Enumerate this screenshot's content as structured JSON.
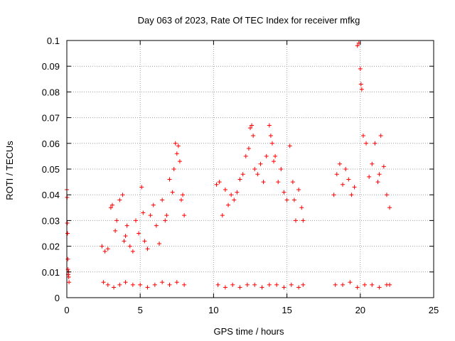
{
  "chart_data": {
    "type": "scatter",
    "title": "Day 063 of 2023, Rate Of TEC Index for receiver mfkg",
    "xlabel": "GPS time / hours",
    "ylabel": "ROTI / TECUs",
    "xlim": [
      0,
      25
    ],
    "ylim": [
      0,
      0.1
    ],
    "x_ticks": [
      0,
      5,
      10,
      15,
      20,
      25
    ],
    "y_ticks": [
      0,
      0.01,
      0.02,
      0.03,
      0.04,
      0.05,
      0.06,
      0.07,
      0.08,
      0.09,
      0.1
    ],
    "x_tick_labels": [
      "0",
      "5",
      "10",
      "15",
      "20",
      "25"
    ],
    "y_tick_labels": [
      "0",
      "0.01",
      "0.02",
      "0.03",
      "0.04",
      "0.05",
      "0.06",
      "0.07",
      "0.08",
      "0.09",
      "0.1"
    ],
    "grid": true,
    "marker": "+",
    "color": "#ff0000",
    "series": [
      {
        "x": [
          0.0,
          0.02,
          0.03,
          0.05,
          0.07,
          0.08,
          0.1,
          0.12,
          0.13,
          0.15,
          2.4,
          2.6,
          2.8,
          3.0,
          3.1,
          3.3,
          3.4,
          3.6,
          3.8,
          3.9,
          4.0,
          4.1,
          4.3,
          4.5,
          4.7,
          4.9,
          5.1,
          5.2,
          5.3,
          5.5,
          5.7,
          5.9,
          6.1,
          6.3,
          6.5,
          6.7,
          6.8,
          7.0,
          7.2,
          7.3,
          7.4,
          7.5,
          7.6,
          7.7,
          7.8,
          7.9,
          8.0,
          10.2,
          10.4,
          10.6,
          10.8,
          11.0,
          11.2,
          11.4,
          11.6,
          11.8,
          12.0,
          12.2,
          12.4,
          12.5,
          12.6,
          12.7,
          12.8,
          13.0,
          13.2,
          13.4,
          13.6,
          13.8,
          13.9,
          14.0,
          14.1,
          14.2,
          14.4,
          14.6,
          14.8,
          15.0,
          15.2,
          15.4,
          15.5,
          15.6,
          15.8,
          16.0,
          16.1,
          18.2,
          18.4,
          18.6,
          18.8,
          19.0,
          19.2,
          19.4,
          19.6,
          19.8,
          19.9,
          20.0,
          20.05,
          20.1,
          20.2,
          20.4,
          20.6,
          20.8,
          21.0,
          21.2,
          21.3,
          21.4,
          21.6,
          21.8,
          22.0
        ],
        "y": [
          0.042,
          0.039,
          0.029,
          0.025,
          0.015,
          0.011,
          0.009,
          0.01,
          0.008,
          0.006,
          0.02,
          0.018,
          0.019,
          0.035,
          0.036,
          0.026,
          0.03,
          0.038,
          0.04,
          0.022,
          0.024,
          0.028,
          0.02,
          0.018,
          0.03,
          0.025,
          0.043,
          0.033,
          0.022,
          0.019,
          0.032,
          0.036,
          0.028,
          0.021,
          0.038,
          0.03,
          0.032,
          0.046,
          0.041,
          0.05,
          0.06,
          0.056,
          0.059,
          0.053,
          0.038,
          0.04,
          0.032,
          0.044,
          0.045,
          0.032,
          0.042,
          0.036,
          0.04,
          0.038,
          0.041,
          0.046,
          0.048,
          0.055,
          0.058,
          0.066,
          0.067,
          0.063,
          0.05,
          0.048,
          0.052,
          0.045,
          0.055,
          0.067,
          0.063,
          0.06,
          0.053,
          0.055,
          0.045,
          0.05,
          0.041,
          0.038,
          0.059,
          0.045,
          0.038,
          0.03,
          0.042,
          0.035,
          0.03,
          0.04,
          0.048,
          0.052,
          0.044,
          0.05,
          0.046,
          0.04,
          0.043,
          0.098,
          0.099,
          0.089,
          0.083,
          0.081,
          0.063,
          0.06,
          0.047,
          0.052,
          0.06,
          0.045,
          0.048,
          0.063,
          0.051,
          0.04,
          0.035
        ]
      },
      {
        "x": [
          2.5,
          2.8,
          3.2,
          3.6,
          4.0,
          4.5,
          5.0,
          5.5,
          6.0,
          6.5,
          7.0,
          7.5,
          8.0,
          10.3,
          10.8,
          11.3,
          11.8,
          12.3,
          12.8,
          13.3,
          13.8,
          14.3,
          14.8,
          15.3,
          15.8,
          16.1,
          18.3,
          18.8,
          19.3,
          19.8,
          20.3,
          20.8,
          21.3,
          21.8,
          22.0
        ],
        "y": [
          0.006,
          0.005,
          0.004,
          0.005,
          0.006,
          0.005,
          0.005,
          0.004,
          0.005,
          0.006,
          0.005,
          0.006,
          0.005,
          0.005,
          0.004,
          0.005,
          0.004,
          0.005,
          0.005,
          0.004,
          0.005,
          0.005,
          0.004,
          0.005,
          0.004,
          0.005,
          0.005,
          0.005,
          0.006,
          0.004,
          0.005,
          0.005,
          0.004,
          0.005,
          0.005
        ]
      }
    ]
  }
}
